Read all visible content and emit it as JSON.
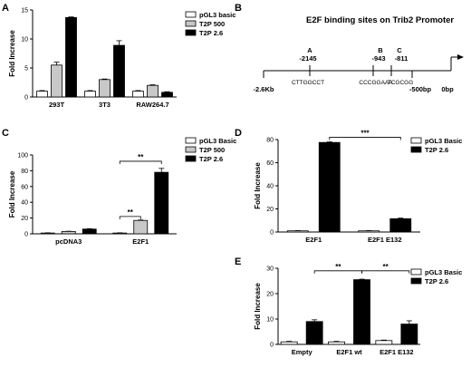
{
  "colors": {
    "white": "#ffffff",
    "gray": "#c8c8c8",
    "black": "#000000"
  },
  "chart_data": [
    {
      "panel": "A",
      "type": "bar",
      "ylabel": "Fold Increase",
      "ylim": [
        0,
        15
      ],
      "yticks": [
        0,
        5,
        10,
        15
      ],
      "categories": [
        "293T",
        "3T3",
        "RAW264.7"
      ],
      "series": [
        {
          "name": "pGL3 basic",
          "color": "white",
          "values": [
            1,
            1,
            1
          ],
          "errors": [
            0.1,
            0.1,
            0.1
          ]
        },
        {
          "name": "T2P 500",
          "color": "gray",
          "values": [
            5.5,
            3,
            2
          ],
          "errors": [
            0.5,
            0.1,
            0.1
          ]
        },
        {
          "name": "T2P 2.6",
          "color": "black",
          "values": [
            13.7,
            8.9,
            0.8
          ],
          "errors": [
            0.1,
            0.8,
            0.1
          ]
        }
      ],
      "legend": "top-right",
      "sig": []
    },
    {
      "panel": "C",
      "type": "bar",
      "ylabel": "Fold Increase",
      "ylim": [
        0,
        100
      ],
      "yticks": [
        0,
        20,
        40,
        60,
        80,
        100
      ],
      "categories": [
        "pcDNA3",
        "E2F1"
      ],
      "series": [
        {
          "name": "pGL3 Basic",
          "color": "white",
          "values": [
            1,
            1
          ],
          "errors": [
            0.3,
            0.3
          ]
        },
        {
          "name": "T2P 500",
          "color": "gray",
          "values": [
            3,
            17
          ],
          "errors": [
            0.3,
            0.5
          ]
        },
        {
          "name": "T2P 2.6",
          "color": "black",
          "values": [
            6,
            78
          ],
          "errors": [
            0.5,
            5
          ]
        }
      ],
      "legend": "top-right",
      "sig": [
        {
          "from": [
            1,
            0
          ],
          "to": [
            1,
            1
          ],
          "y": 22,
          "label": "**"
        },
        {
          "from": [
            1,
            0
          ],
          "to": [
            1,
            2
          ],
          "y": 92,
          "label": "**"
        }
      ]
    },
    {
      "panel": "D",
      "type": "bar",
      "ylabel": "Fold Increase",
      "ylim": [
        0,
        80
      ],
      "yticks": [
        0,
        20,
        40,
        60,
        80
      ],
      "categories": [
        "E2F1",
        "E2F1 E132"
      ],
      "series": [
        {
          "name": "pGL3 Basic",
          "color": "white",
          "values": [
            1,
            1
          ],
          "errors": [
            0.2,
            0.2
          ]
        },
        {
          "name": "T2P 2.6",
          "color": "black",
          "values": [
            77.5,
            11.5
          ],
          "errors": [
            0.5,
            0.5
          ]
        }
      ],
      "legend": "top-right",
      "sig": [
        {
          "from": [
            0,
            1
          ],
          "to": [
            1,
            1
          ],
          "y": 82,
          "label": "***"
        }
      ]
    },
    {
      "panel": "E",
      "type": "bar",
      "ylabel": "Fold Increase",
      "ylim": [
        0,
        30
      ],
      "yticks": [
        0,
        10,
        20,
        30
      ],
      "categories": [
        "Empty",
        "E2F1 wt",
        "E2F1 E132"
      ],
      "series": [
        {
          "name": "pGL3 Basic",
          "color": "white",
          "values": [
            1,
            1,
            1.5
          ],
          "errors": [
            0.2,
            0.2,
            0.2
          ]
        },
        {
          "name": "T2P 2.6",
          "color": "black",
          "values": [
            9,
            25.5,
            8
          ],
          "errors": [
            0.7,
            0.2,
            1.3
          ]
        }
      ],
      "legend": "top-right",
      "sig": [
        {
          "from": [
            0,
            1
          ],
          "to": [
            1,
            1
          ],
          "y": 29,
          "label": "**"
        },
        {
          "from": [
            1,
            1
          ],
          "to": [
            2,
            1
          ],
          "y": 29,
          "label": "**"
        }
      ]
    }
  ],
  "diagram": {
    "panel": "B",
    "title": "E2F binding sites on Trib2 Promoter",
    "left_label": "-2.6Kb",
    "mid_label": "-500bp",
    "right_label": "0bp",
    "sites": [
      {
        "letter": "A",
        "position": "-2145",
        "sequence": "CTTGGCCT"
      },
      {
        "letter": "B",
        "position": "-943",
        "sequence": "CCCGGAAA"
      },
      {
        "letter": "C",
        "position": "-811",
        "sequence": "TCGCGG"
      }
    ]
  }
}
